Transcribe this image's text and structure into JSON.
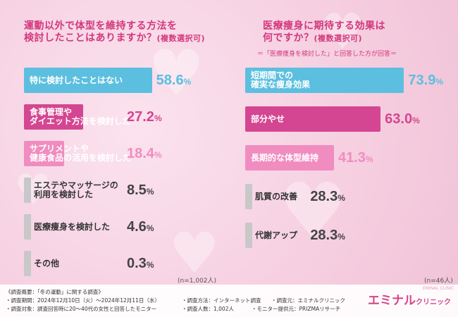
{
  "left": {
    "title": "運動以外で体型を維持する方法を\n検討したことはありますか？",
    "title_option": "(複数選択可)",
    "sample": "(n=1,002人)",
    "unit": "%"
  },
  "right": {
    "title": "医療痩身に期待する効果は\n何ですか？",
    "title_option": "(複数選択可)",
    "note": "＝「医療痩身を検討した」と回答した方が回答＝",
    "sample": "(n=46人)",
    "unit": "%"
  },
  "chart_data": [
    {
      "type": "bar",
      "orientation": "horizontal",
      "title": "運動以外で体型を維持する方法を検討したことはありますか？(複数選択可)",
      "categories": [
        "特に検討したことはない",
        "食事管理や\nダイエット方法を検討した",
        "サプリメントや\n健康食品の活用を検討した",
        "エステやマッサージの\n利用を検討した",
        "医療痩身を検討した",
        "その他"
      ],
      "values": [
        58.6,
        27.2,
        18.4,
        8.5,
        4.6,
        0.3
      ],
      "value_labels": [
        "58.6",
        "27.2",
        "18.4",
        "8.5",
        "4.6",
        "0.3"
      ],
      "colors": [
        "#5cbfdf",
        "#d44691",
        "#f08cc0",
        "#c8c8c8",
        "#c8c8c8",
        "#c8c8c8"
      ],
      "xlim": [
        0,
        100
      ]
    },
    {
      "type": "bar",
      "orientation": "horizontal",
      "title": "医療痩身に期待する効果は何ですか？(複数選択可)",
      "categories": [
        "短期間での\n確実な痩身効果",
        "部分やせ",
        "長期的な体型維持",
        "肌質の改善",
        "代謝アップ"
      ],
      "values": [
        73.9,
        63.0,
        41.3,
        28.3,
        28.3
      ],
      "value_labels": [
        "73.9",
        "63.0",
        "41.3",
        "28.3",
        "28.3"
      ],
      "colors": [
        "#5cbfdf",
        "#d44691",
        "#f08cc0",
        "#c8c8c8",
        "#c8c8c8"
      ],
      "xlim": [
        0,
        100
      ]
    }
  ],
  "footer": {
    "line1": "《調査概要：「冬の運動」に関する調査》",
    "line2a": "・調査期間：2024年12月10日（火）～2024年12月11日（水）",
    "line2b": "・調査方法：インターネット調査",
    "line2c": "・調査元：エミナルクリニック",
    "line3a": "・調査対象：調査回答時に20～40代の女性と回答したモニター",
    "line3b": "・調査人数：1,002人",
    "line3c": "・モニター提供元：PRIZMAリサーチ"
  },
  "logo": {
    "main": "エミナル",
    "sub": "クリニック",
    "tag": "EMINAL CLINIC"
  }
}
